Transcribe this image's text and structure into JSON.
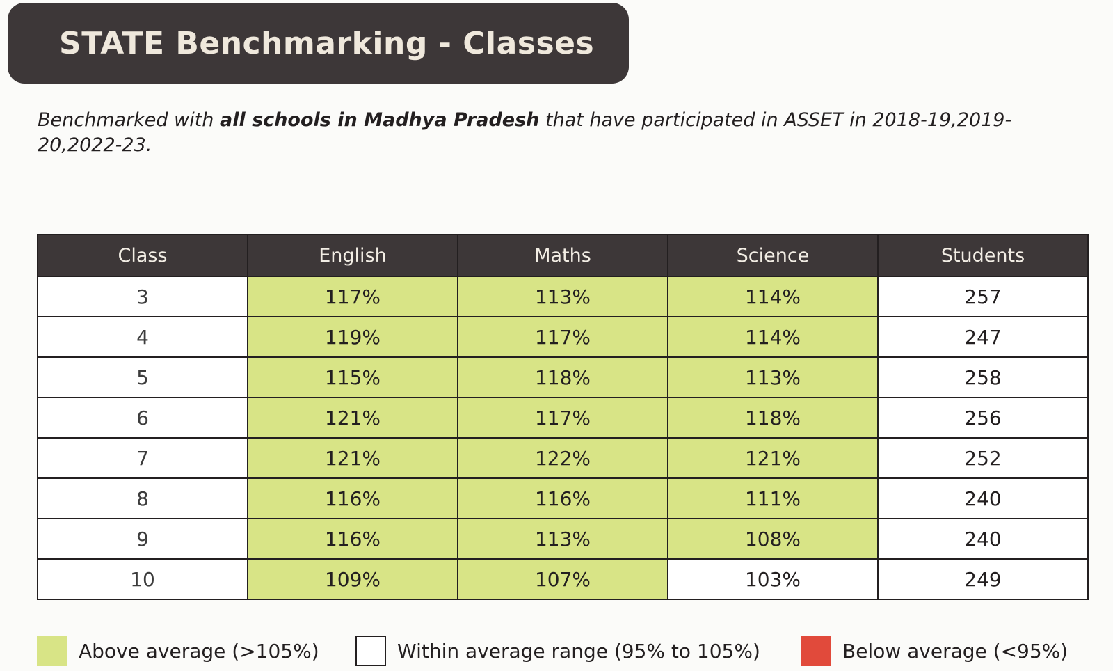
{
  "title": "STATE Benchmarking - Classes",
  "subtitle": {
    "prefix": "Benchmarked with ",
    "bold": "all schools in Madhya Pradesh",
    "suffix": " that have participated in ASSET in 2018-19,2019-20,2022-23."
  },
  "table": {
    "headers": [
      "Class",
      "English",
      "Maths",
      "Science",
      "Students"
    ],
    "rows": [
      {
        "class": "3",
        "english": "117%",
        "maths": "113%",
        "science": "114%",
        "students": "257",
        "status": {
          "english": "above",
          "maths": "above",
          "science": "above"
        }
      },
      {
        "class": "4",
        "english": "119%",
        "maths": "117%",
        "science": "114%",
        "students": "247",
        "status": {
          "english": "above",
          "maths": "above",
          "science": "above"
        }
      },
      {
        "class": "5",
        "english": "115%",
        "maths": "118%",
        "science": "113%",
        "students": "258",
        "status": {
          "english": "above",
          "maths": "above",
          "science": "above"
        }
      },
      {
        "class": "6",
        "english": "121%",
        "maths": "117%",
        "science": "118%",
        "students": "256",
        "status": {
          "english": "above",
          "maths": "above",
          "science": "above"
        }
      },
      {
        "class": "7",
        "english": "121%",
        "maths": "122%",
        "science": "121%",
        "students": "252",
        "status": {
          "english": "above",
          "maths": "above",
          "science": "above"
        }
      },
      {
        "class": "8",
        "english": "116%",
        "maths": "116%",
        "science": "111%",
        "students": "240",
        "status": {
          "english": "above",
          "maths": "above",
          "science": "above"
        }
      },
      {
        "class": "9",
        "english": "116%",
        "maths": "113%",
        "science": "108%",
        "students": "240",
        "status": {
          "english": "above",
          "maths": "above",
          "science": "above"
        }
      },
      {
        "class": "10",
        "english": "109%",
        "maths": "107%",
        "science": "103%",
        "students": "249",
        "status": {
          "english": "above",
          "maths": "above",
          "science": "within"
        }
      }
    ]
  },
  "legend": [
    {
      "key": "above",
      "label": "Above average (>105%)",
      "color": "#d8e486"
    },
    {
      "key": "within",
      "label": "Within average range (95% to 105%)",
      "color": "#ffffff"
    },
    {
      "key": "below",
      "label": "Below average (<95%)",
      "color": "#e14a3b"
    }
  ],
  "colors": {
    "banner": "#3d3738",
    "banner_text": "#efe8dc",
    "header_bg": "#3d3738",
    "above": "#d8e486",
    "within": "#ffffff",
    "below": "#e14a3b"
  }
}
